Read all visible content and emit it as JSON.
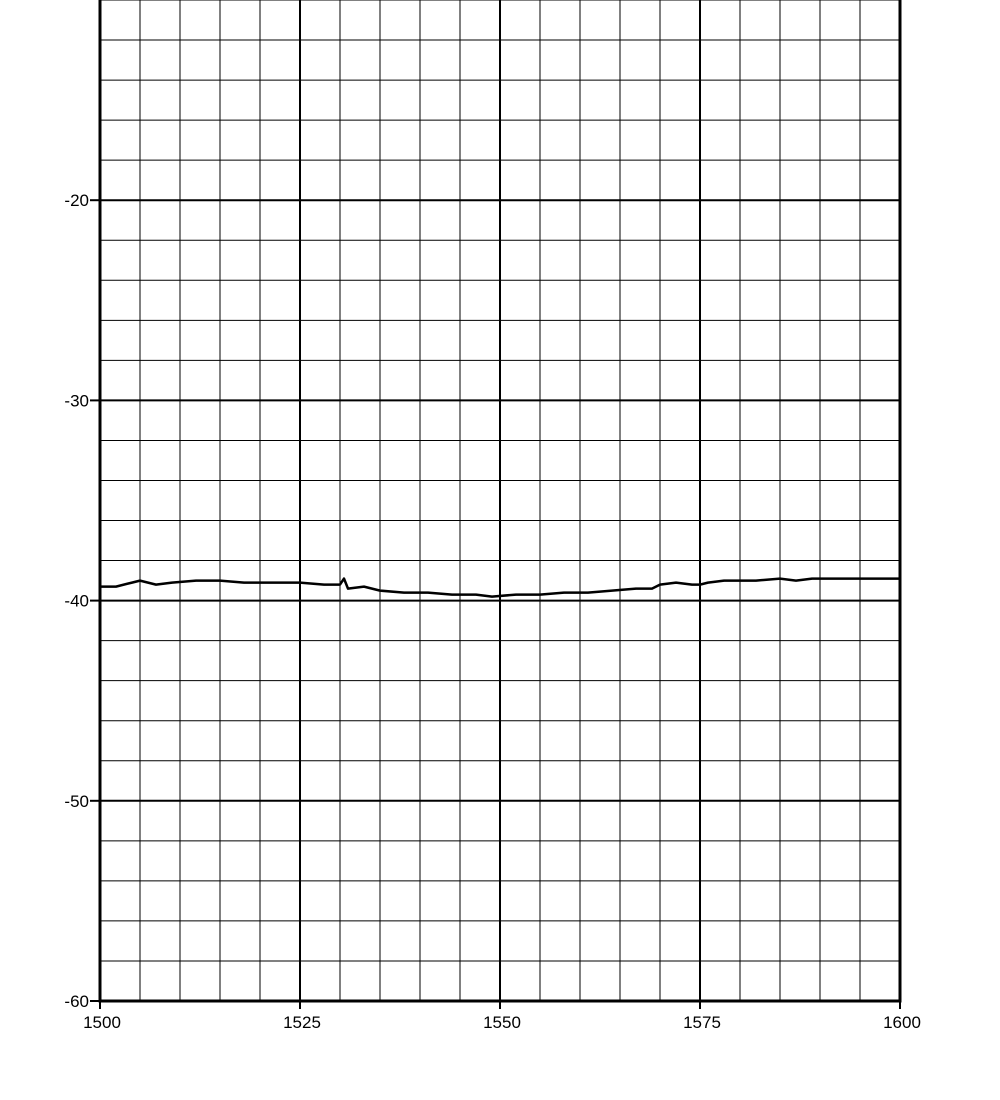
{
  "chart_data": {
    "type": "line",
    "title": "",
    "xlabel": "",
    "ylabel": "",
    "xlim": [
      1500,
      1600
    ],
    "ylim": [
      -60,
      -10
    ],
    "x_ticks": [
      1500,
      1525,
      1550,
      1575,
      1600
    ],
    "x_tick_labels": [
      "1500",
      "1525",
      "1550",
      "1575",
      "1600"
    ],
    "y_ticks": [
      -60,
      -50,
      -40,
      -30,
      -20
    ],
    "y_tick_labels": [
      "-60",
      "-50",
      "-40",
      "-30",
      "-20"
    ],
    "x_minor_step": 5,
    "y_minor_step": 2,
    "grid": true,
    "legend": "none",
    "series": [
      {
        "color": "#000000",
        "points": [
          [
            1500,
            -39.3
          ],
          [
            1502,
            -39.3
          ],
          [
            1504,
            -39.1
          ],
          [
            1505,
            -39.0
          ],
          [
            1507,
            -39.2
          ],
          [
            1509,
            -39.1
          ],
          [
            1512,
            -39.0
          ],
          [
            1515,
            -39.0
          ],
          [
            1518,
            -39.1
          ],
          [
            1520,
            -39.1
          ],
          [
            1523,
            -39.1
          ],
          [
            1525,
            -39.1
          ],
          [
            1528,
            -39.2
          ],
          [
            1530,
            -39.2
          ],
          [
            1530.5,
            -38.9
          ],
          [
            1531,
            -39.4
          ],
          [
            1533,
            -39.3
          ],
          [
            1535,
            -39.5
          ],
          [
            1538,
            -39.6
          ],
          [
            1541,
            -39.6
          ],
          [
            1544,
            -39.7
          ],
          [
            1547,
            -39.7
          ],
          [
            1549,
            -39.8
          ],
          [
            1552,
            -39.7
          ],
          [
            1555,
            -39.7
          ],
          [
            1558,
            -39.6
          ],
          [
            1561,
            -39.6
          ],
          [
            1564,
            -39.5
          ],
          [
            1567,
            -39.4
          ],
          [
            1569,
            -39.4
          ],
          [
            1570,
            -39.2
          ],
          [
            1572,
            -39.1
          ],
          [
            1574,
            -39.2
          ],
          [
            1575,
            -39.2
          ],
          [
            1576,
            -39.1
          ],
          [
            1578,
            -39.0
          ],
          [
            1580,
            -39.0
          ],
          [
            1582,
            -39.0
          ],
          [
            1585,
            -38.9
          ],
          [
            1587,
            -39.0
          ],
          [
            1589,
            -38.9
          ],
          [
            1592,
            -38.9
          ],
          [
            1595,
            -38.9
          ],
          [
            1598,
            -38.9
          ],
          [
            1600,
            -38.9
          ]
        ]
      }
    ]
  }
}
